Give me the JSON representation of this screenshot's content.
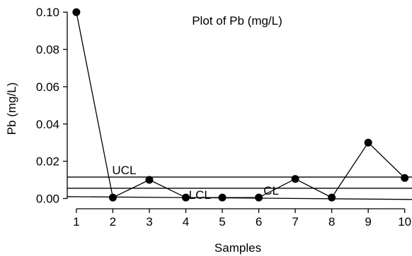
{
  "chart_data": {
    "type": "line",
    "title": "Plot of Pb (mg/L)",
    "xlabel": "Samples",
    "ylabel": "Pb (mg/L)",
    "x": [
      1,
      2,
      3,
      4,
      5,
      6,
      7,
      8,
      9,
      10
    ],
    "xlim": [
      0.75,
      10.2
    ],
    "ylim": [
      -0.0055,
      0.1035
    ],
    "yticks": [
      0.0,
      0.02,
      0.04,
      0.06,
      0.08,
      0.1
    ],
    "ytick_labels": [
      "0.00",
      "0.02",
      "0.04",
      "0.06",
      "0.08",
      "0.10"
    ],
    "xtick_labels": [
      "1",
      "2",
      "3",
      "4",
      "5",
      "6",
      "7",
      "8",
      "9",
      "10"
    ],
    "series": [
      {
        "values": [
          0.1,
          0.0005,
          0.01,
          0.0005,
          0.0005,
          0.0005,
          0.0105,
          0.0005,
          0.03,
          0.011
        ]
      }
    ],
    "control_lines": [
      {
        "label": "UCL",
        "y_start": 0.0115,
        "y_end": 0.0115
      },
      {
        "label": "CL",
        "y_start": 0.0055,
        "y_end": 0.0055
      },
      {
        "label": "LCL",
        "y_start": 0.001,
        "y_end": -0.0005
      }
    ],
    "grid": false,
    "legend": "none"
  }
}
